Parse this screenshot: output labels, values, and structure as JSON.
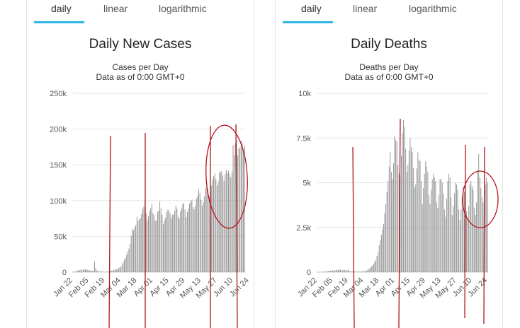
{
  "tabs": [
    "daily",
    "linear",
    "logarithmic"
  ],
  "colors": {
    "tab_underline": "#2bb6e5",
    "bar": "#8a8a8a",
    "annotation": "#b3131b"
  },
  "chart_data": [
    {
      "type": "bar",
      "title": "Daily New Cases",
      "subtitle": "Cases per Day",
      "note": "Data as of 0:00 GMT+0",
      "ylim": [
        0,
        250000
      ],
      "yticks": [
        0,
        50000,
        100000,
        150000,
        200000,
        250000
      ],
      "ytick_labels": [
        "0",
        "50k",
        "100k",
        "150k",
        "200k",
        "250k"
      ],
      "xtick_labels": [
        "Jan 22",
        "Feb 05",
        "Feb 19",
        "Mar 04",
        "Mar 18",
        "Apr 01",
        "Apr 15",
        "Apr 29",
        "May 13",
        "May 27",
        "Jun 10",
        "Jun 24"
      ],
      "grid": true,
      "series": [
        {
          "values": [
            600,
            400,
            900,
            1500,
            2100,
            2600,
            2800,
            3400,
            3700,
            3200,
            3900,
            3700,
            3800,
            3200,
            2600,
            2600,
            2000,
            2100,
            1800,
            15100,
            6000,
            2300,
            1800,
            900,
            1000,
            700,
            900,
            400,
            500,
            600,
            900,
            1100,
            1300,
            1900,
            2300,
            2500,
            2900,
            3900,
            4000,
            4400,
            5400,
            6700,
            7600,
            10500,
            14000,
            17300,
            19900,
            24500,
            28700,
            32900,
            39500,
            51000,
            60500,
            58400,
            62900,
            65500,
            77400,
            71800,
            73700,
            75700,
            81100,
            88800,
            91700,
            99200,
            82300,
            72600,
            78000,
            84700,
            89200,
            95700,
            82300,
            80000,
            72000,
            72800,
            84400,
            85700,
            98700,
            89100,
            80100,
            66800,
            72100,
            76400,
            83900,
            87300,
            86200,
            81900,
            75000,
            80000,
            81000,
            86000,
            93000,
            88500,
            77500,
            75000,
            85000,
            89000,
            95000,
            96800,
            87500,
            77000,
            84000,
            89000,
            96000,
            99000,
            101000,
            91000,
            88000,
            93000,
            103000,
            107000,
            116000,
            111000,
            101000,
            93000,
            98000,
            106000,
            118000,
            125000,
            115000,
            106000,
            112000,
            121000,
            130000,
            134000,
            138000,
            130000,
            121000,
            127000,
            139000,
            140000,
            141000,
            135000,
            128000,
            137000,
            143000,
            139000,
            142000,
            137000,
            133000,
            141000,
            178000,
            164000,
            180000,
            185000,
            163000,
            172000,
            175000,
            184000,
            180000,
            168000,
            177000
          ]
        }
      ]
    },
    {
      "type": "bar",
      "title": "Daily Deaths",
      "subtitle": "Deaths per Day",
      "note": "Data as of 0:00 GMT+0",
      "ylim": [
        0,
        10000
      ],
      "yticks": [
        0,
        2500,
        5000,
        7500,
        10000
      ],
      "ytick_labels": [
        "0",
        "2.5k",
        "5k",
        "7.5k",
        "10k"
      ],
      "xtick_labels": [
        "Jan 22",
        "Feb 05",
        "Feb 19",
        "Mar 04",
        "Mar 18",
        "Apr 01",
        "Apr 15",
        "Apr 29",
        "May 13",
        "May 27",
        "Jun 10",
        "Jun 24"
      ],
      "grid": true,
      "series": [
        {
          "values": [
            0,
            10,
            10,
            15,
            16,
            20,
            25,
            26,
            42,
            45,
            64,
            65,
            73,
            86,
            89,
            97,
            108,
            97,
            146,
            121,
            143,
            142,
            105,
            98,
            136,
            118,
            109,
            97,
            150,
            71,
            52,
            29,
            44,
            47,
            35,
            42,
            31,
            38,
            31,
            30,
            30,
            36,
            52,
            51,
            73,
            102,
            161,
            179,
            248,
            318,
            373,
            460,
            584,
            670,
            900,
            1100,
            1500,
            1800,
            2100,
            2400,
            2700,
            3300,
            3800,
            4500,
            5100,
            5900,
            6700,
            5600,
            5200,
            6100,
            7600,
            7400,
            7300,
            6000,
            5500,
            5400,
            6500,
            7800,
            8500,
            8100,
            6900,
            5600,
            6000,
            6800,
            7500,
            7000,
            6700,
            5800,
            4700,
            4900,
            5800,
            6700,
            6300,
            6200,
            5100,
            3800,
            4700,
            5500,
            6200,
            5900,
            5600,
            4300,
            3800,
            4600,
            5200,
            5500,
            5300,
            5100,
            3900,
            3600,
            4300,
            5200,
            5200,
            5000,
            4400,
            3500,
            3100,
            4100,
            5100,
            5500,
            5300,
            4200,
            3200,
            3700,
            4400,
            5000,
            4900,
            4600,
            3500,
            2900,
            3500,
            4200,
            4800,
            4500,
            4300,
            3400,
            3000,
            3700,
            4900,
            5100,
            4800,
            4600,
            3600,
            3200,
            3900,
            5700,
            6600,
            5300,
            4700,
            4200,
            3900,
            4600,
            4900,
            5300,
            5000
          ]
        }
      ]
    }
  ]
}
